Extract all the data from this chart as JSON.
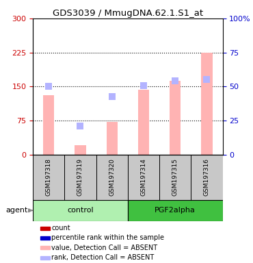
{
  "title": "GDS3039 / MmugDNA.62.1.S1_at",
  "samples": [
    "GSM197318",
    "GSM197319",
    "GSM197320",
    "GSM197314",
    "GSM197315",
    "GSM197316"
  ],
  "groups": [
    {
      "name": "control",
      "color": "#b0f0b0",
      "indices": [
        0,
        1,
        2
      ]
    },
    {
      "name": "PGF2alpha",
      "color": "#40c040",
      "indices": [
        3,
        4,
        5
      ]
    }
  ],
  "bar_values": [
    130,
    20,
    72,
    143,
    162,
    225
  ],
  "bar_color_absent": "#ffb3b3",
  "dot_values": [
    151,
    63,
    128,
    152,
    162,
    165
  ],
  "dot_color_absent": "#b3b3ff",
  "ylim_left": [
    0,
    300
  ],
  "ylim_right": [
    0,
    100
  ],
  "yticks_left": [
    0,
    75,
    150,
    225,
    300
  ],
  "ytick_labels_left": [
    "0",
    "75",
    "150",
    "225",
    "300"
  ],
  "yticks_right": [
    0,
    25,
    50,
    75,
    100
  ],
  "ytick_labels_right": [
    "0",
    "25",
    "50",
    "75",
    "100%"
  ],
  "hlines": [
    75,
    150,
    225
  ],
  "left_color": "#cc0000",
  "right_color": "#0000cc",
  "legend_items": [
    {
      "label": "count",
      "color": "#cc0000"
    },
    {
      "label": "percentile rank within the sample",
      "color": "#0000cc"
    },
    {
      "label": "value, Detection Call = ABSENT",
      "color": "#ffb3b3"
    },
    {
      "label": "rank, Detection Call = ABSENT",
      "color": "#b3b3ff"
    }
  ],
  "bar_width": 0.35,
  "dot_size": 55,
  "sample_box_color": "#c8c8c8"
}
